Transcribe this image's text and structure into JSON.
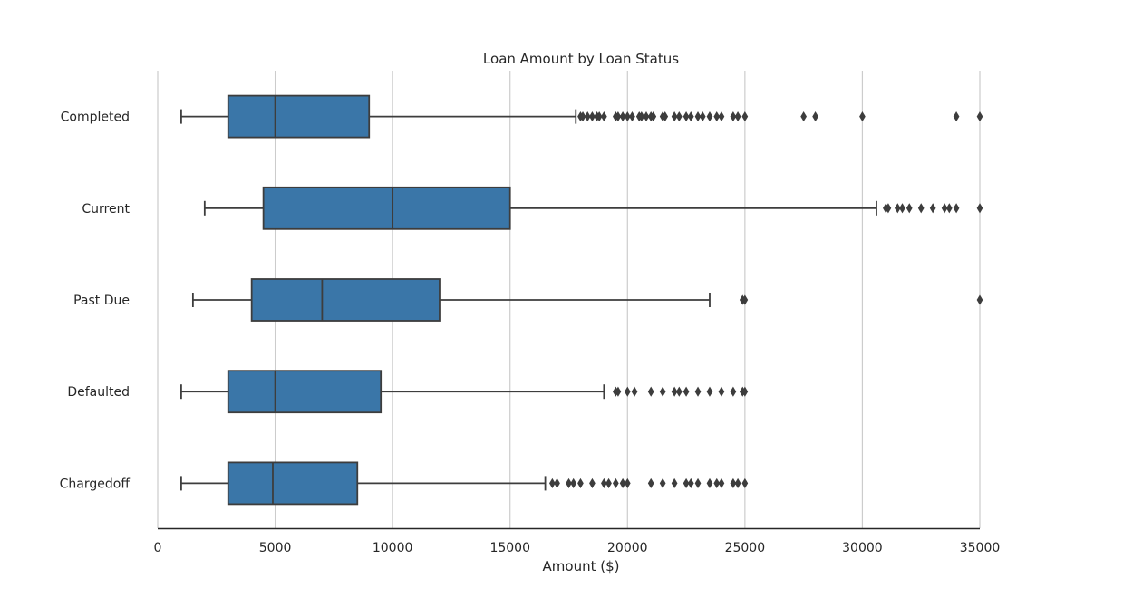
{
  "chart_data": {
    "type": "boxplot",
    "orientation": "horizontal",
    "title": "Loan Amount by Loan Status",
    "xlabel": "Amount ($)",
    "ylabel": "",
    "xlim": [
      0,
      35000
    ],
    "xticks": [
      0,
      5000,
      10000,
      15000,
      20000,
      25000,
      30000,
      35000
    ],
    "grid": "vertical",
    "box_color": "#3a76a8",
    "line_color": "#3d3d3d",
    "categories": [
      "Completed",
      "Current",
      "Past Due",
      "Defaulted",
      "Chargedoff"
    ],
    "boxes": [
      {
        "category": "Completed",
        "whisker_low": 1000,
        "q1": 3000,
        "median": 5000,
        "q3": 9000,
        "whisker_high": 17800,
        "outliers": [
          18000,
          18100,
          18300,
          18500,
          18700,
          18800,
          19000,
          19500,
          19600,
          19800,
          20000,
          20200,
          20500,
          20600,
          20800,
          21000,
          21100,
          21500,
          21600,
          22000,
          22200,
          22500,
          22700,
          23000,
          23200,
          23500,
          23800,
          24000,
          24500,
          24700,
          25000,
          27500,
          28000,
          30000,
          34000,
          35000
        ]
      },
      {
        "category": "Current",
        "whisker_low": 2000,
        "q1": 4500,
        "median": 10000,
        "q3": 15000,
        "whisker_high": 30600,
        "outliers": [
          31000,
          31100,
          31500,
          31700,
          32000,
          32500,
          33000,
          33500,
          33700,
          34000,
          35000
        ]
      },
      {
        "category": "Past Due",
        "whisker_low": 1500,
        "q1": 4000,
        "median": 7000,
        "q3": 12000,
        "whisker_high": 23500,
        "outliers": [
          24900,
          25000,
          35000
        ]
      },
      {
        "category": "Defaulted",
        "whisker_low": 1000,
        "q1": 3000,
        "median": 5000,
        "q3": 9500,
        "whisker_high": 19000,
        "outliers": [
          19500,
          19600,
          20000,
          20300,
          21000,
          21500,
          22000,
          22200,
          22500,
          23000,
          23500,
          24000,
          24500,
          24900,
          25000
        ]
      },
      {
        "category": "Chargedoff",
        "whisker_low": 1000,
        "q1": 3000,
        "median": 4900,
        "q3": 8500,
        "whisker_high": 16500,
        "outliers": [
          16800,
          17000,
          17500,
          17700,
          18000,
          18500,
          19000,
          19200,
          19500,
          19800,
          20000,
          21000,
          21500,
          22000,
          22500,
          22700,
          23000,
          23500,
          23800,
          24000,
          24500,
          24700,
          25000
        ]
      }
    ]
  }
}
